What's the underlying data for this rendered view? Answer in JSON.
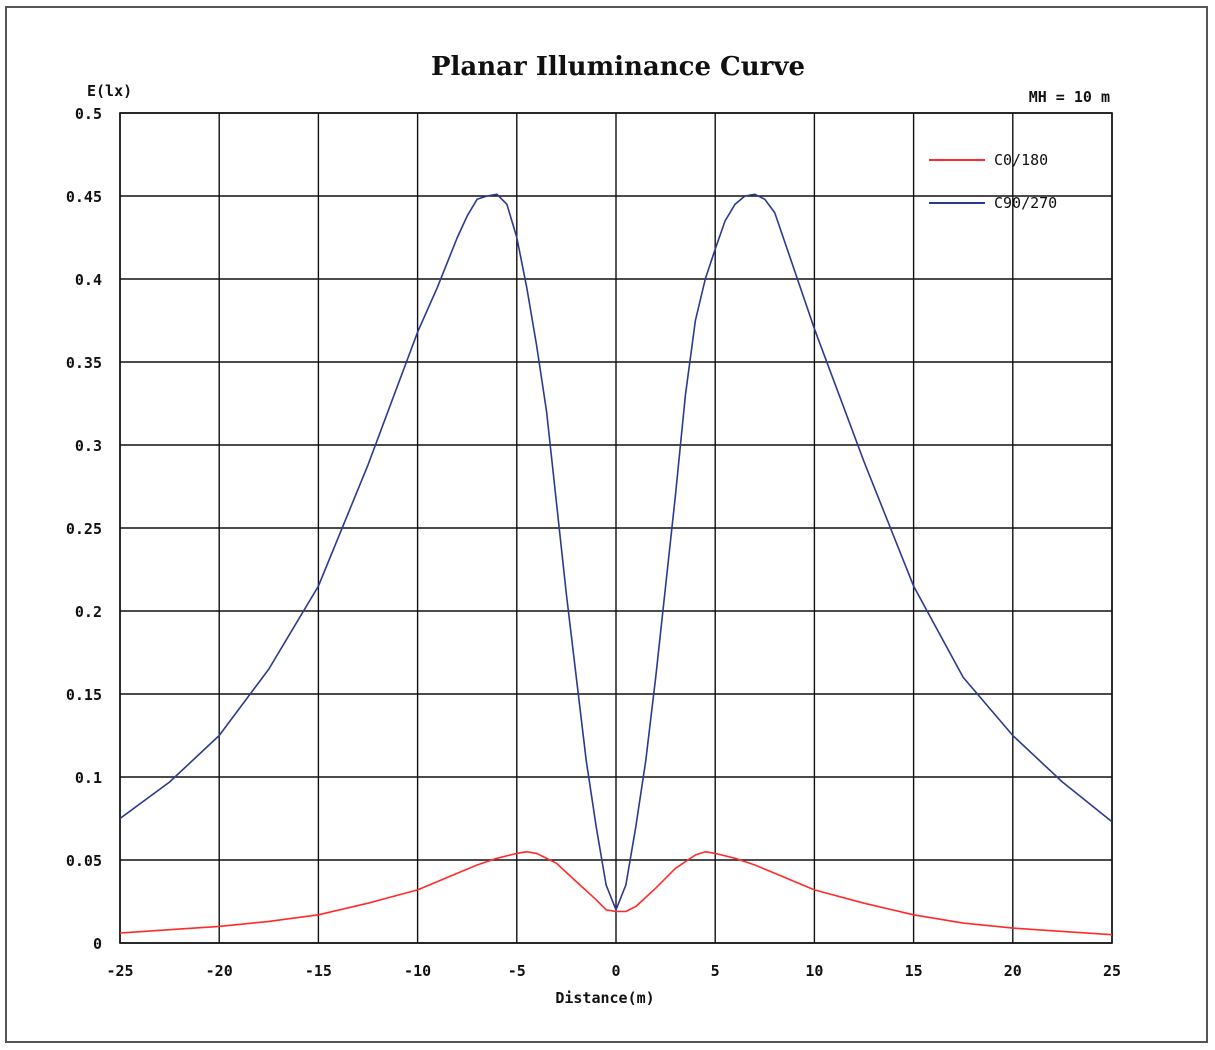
{
  "chart_data": {
    "type": "line",
    "title": "Planar Illuminance Curve",
    "annotation": "MH = 10 m",
    "xlabel": "Distance(m)",
    "ylabel": "E(lx)",
    "xlim": [
      -25,
      25
    ],
    "ylim": [
      0,
      0.5
    ],
    "xticks": [
      "-25",
      "-20",
      "-15",
      "-10",
      "-5",
      "0",
      "5",
      "10",
      "15",
      "20",
      "25"
    ],
    "yticks": [
      "0",
      "0.05",
      "0.1",
      "0.15",
      "0.2",
      "0.25",
      "0.3",
      "0.35",
      "0.4",
      "0.45",
      "0.5"
    ],
    "grid": true,
    "legend_position": "top-right",
    "series": [
      {
        "name": "C0/180",
        "color": "#ff2a2a",
        "x": [
          -25,
          -22.5,
          -20,
          -17.5,
          -15,
          -12.5,
          -10,
          -8,
          -7,
          -6,
          -5,
          -4.5,
          -4,
          -3,
          -2,
          -1,
          -0.5,
          0,
          0.5,
          1,
          2,
          3,
          4,
          4.5,
          5,
          6,
          7,
          8,
          10,
          12.5,
          15,
          17.5,
          20,
          22.5,
          25
        ],
        "y": [
          0.006,
          0.008,
          0.01,
          0.013,
          0.017,
          0.024,
          0.032,
          0.042,
          0.047,
          0.051,
          0.054,
          0.055,
          0.054,
          0.048,
          0.037,
          0.026,
          0.02,
          0.019,
          0.019,
          0.022,
          0.033,
          0.045,
          0.053,
          0.055,
          0.054,
          0.051,
          0.047,
          0.042,
          0.032,
          0.024,
          0.017,
          0.012,
          0.009,
          0.007,
          0.005
        ]
      },
      {
        "name": "C90/270",
        "color": "#2b3990",
        "x": [
          -25,
          -22.5,
          -20,
          -17.5,
          -15,
          -12.5,
          -10,
          -9,
          -8,
          -7.5,
          -7,
          -6.5,
          -6,
          -5.5,
          -5,
          -4.5,
          -4,
          -3.5,
          -3,
          -2.5,
          -2,
          -1.5,
          -1,
          -0.5,
          0,
          0.5,
          1,
          1.5,
          2,
          2.5,
          3,
          3.5,
          4,
          4.5,
          5,
          5.5,
          6,
          6.5,
          7,
          7.5,
          8,
          9,
          10,
          12.5,
          15,
          17.5,
          20,
          22.5,
          25
        ],
        "y": [
          0.075,
          0.097,
          0.125,
          0.165,
          0.215,
          0.288,
          0.368,
          0.395,
          0.425,
          0.438,
          0.448,
          0.45,
          0.451,
          0.445,
          0.425,
          0.395,
          0.36,
          0.32,
          0.265,
          0.21,
          0.16,
          0.11,
          0.07,
          0.035,
          0.02,
          0.035,
          0.07,
          0.11,
          0.16,
          0.215,
          0.27,
          0.33,
          0.375,
          0.4,
          0.418,
          0.435,
          0.445,
          0.45,
          0.451,
          0.448,
          0.44,
          0.405,
          0.37,
          0.29,
          0.215,
          0.16,
          0.125,
          0.097,
          0.073
        ]
      }
    ]
  }
}
